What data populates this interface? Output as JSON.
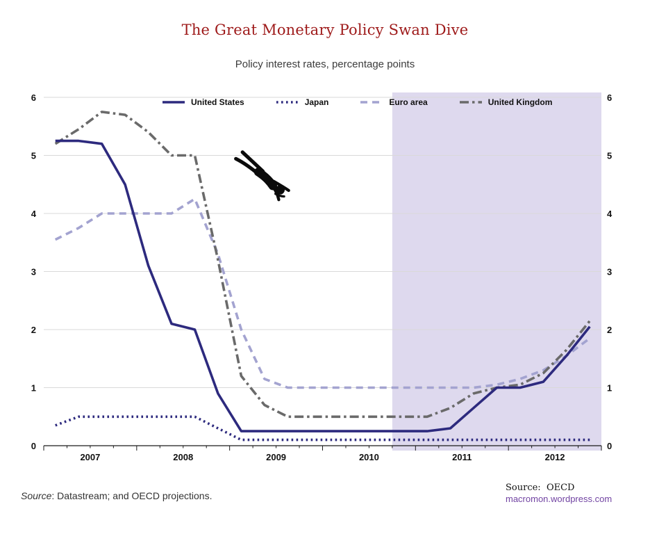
{
  "title": "The Great Monetary Policy Swan Dive",
  "subtitle": "Policy interest rates, percentage points",
  "footer_left": {
    "source_word": "Source",
    "rest": ": Datastream; and OECD projections."
  },
  "footer_right": {
    "source_label": "Source:",
    "source_value": "OECD",
    "site": "macromon.wordpress.com"
  },
  "colors": {
    "title": "#9e1a1a",
    "united_states": "#2d2a7e",
    "japan": "#2d2a7e",
    "euro_area": "#a3a3d0",
    "united_kingdom": "#6a6a6a",
    "projection_shading": "#ded9ee",
    "gridline": "#d9d9d9",
    "axis": "#1a1a1a",
    "link": "#7143a2"
  },
  "chart_data": {
    "type": "line",
    "title": "The Great Monetary Policy Swan Dive",
    "subtitle": "Policy interest rates, percentage points",
    "xlabel": "",
    "ylabel": "",
    "ylim": [
      0,
      6
    ],
    "y_ticks": [
      0,
      1,
      2,
      3,
      4,
      5,
      6
    ],
    "y_axis_sides": [
      "left",
      "right"
    ],
    "grid": "horizontal",
    "legend_position": "top",
    "x_year_labels": [
      "2007",
      "2008",
      "2009",
      "2010",
      "2011",
      "2012"
    ],
    "categories": [
      "2007 Q1",
      "2007 Q2",
      "2007 Q3",
      "2007 Q4",
      "2008 Q1",
      "2008 Q2",
      "2008 Q3",
      "2008 Q4",
      "2009 Q1",
      "2009 Q2",
      "2009 Q3",
      "2009 Q4",
      "2010 Q1",
      "2010 Q2",
      "2010 Q3",
      "2010 Q4",
      "2011 Q1",
      "2011 Q2",
      "2011 Q3",
      "2011 Q4",
      "2012 Q1",
      "2012 Q2",
      "2012 Q3",
      "2012 Q4"
    ],
    "series": [
      {
        "name": "United States",
        "key": "united-states",
        "color": "#2d2a7e",
        "style": "solid",
        "values": [
          5.25,
          5.25,
          5.2,
          4.5,
          3.1,
          2.1,
          2.0,
          0.9,
          0.25,
          0.25,
          0.25,
          0.25,
          0.25,
          0.25,
          0.25,
          0.25,
          0.25,
          0.3,
          0.65,
          1.0,
          1.0,
          1.1,
          1.55,
          2.05
        ]
      },
      {
        "name": "Japan",
        "key": "japan",
        "color": "#2d2a7e",
        "style": "dotted",
        "values": [
          0.35,
          0.5,
          0.5,
          0.5,
          0.5,
          0.5,
          0.5,
          0.3,
          0.1,
          0.1,
          0.1,
          0.1,
          0.1,
          0.1,
          0.1,
          0.1,
          0.1,
          0.1,
          0.1,
          0.1,
          0.1,
          0.1,
          0.1,
          0.1
        ]
      },
      {
        "name": "Euro area",
        "key": "euro-area",
        "color": "#a3a3d0",
        "style": "dashed",
        "values": [
          3.55,
          3.75,
          4.0,
          4.0,
          4.0,
          4.0,
          4.25,
          3.3,
          2.0,
          1.15,
          1.0,
          1.0,
          1.0,
          1.0,
          1.0,
          1.0,
          1.0,
          1.0,
          1.0,
          1.05,
          1.15,
          1.3,
          1.55,
          1.85
        ]
      },
      {
        "name": "United Kingdom",
        "key": "united-kingdom",
        "color": "#6a6a6a",
        "style": "dashdot",
        "values": [
          5.2,
          5.45,
          5.75,
          5.7,
          5.4,
          5.0,
          5.0,
          3.2,
          1.2,
          0.7,
          0.5,
          0.5,
          0.5,
          0.5,
          0.5,
          0.5,
          0.5,
          0.65,
          0.9,
          1.0,
          1.05,
          1.25,
          1.65,
          2.15
        ]
      }
    ],
    "projection_shading": {
      "start_category_index": 15,
      "color": "#ded9ee",
      "note": "shaded area marks OECD projection period"
    }
  }
}
